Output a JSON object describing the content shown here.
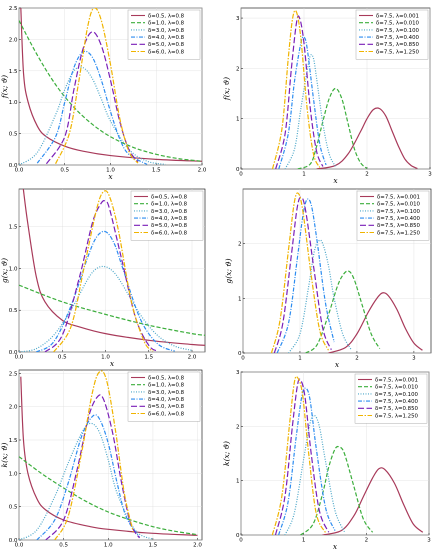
{
  "colors": {
    "s1": "#a83a5a",
    "s2": "#3cae3c",
    "s3": "#4aa6c8",
    "s4": "#2c8cf0",
    "s5": "#7a1fb8",
    "s6": "#f0b400",
    "grid": "#dddddd"
  },
  "chart_data": [
    {
      "type": "line",
      "ylabel": "f(x; ϑ)",
      "xlabel": "x",
      "xlim": [
        0,
        2.0
      ],
      "ylim": [
        0,
        2.5
      ],
      "xticks": [
        "0.0",
        "0.5",
        "1.0",
        "1.5",
        "2.0"
      ],
      "yticks": [
        "0.0",
        "0.5",
        "1.0",
        "1.5",
        "2.0",
        "2.5"
      ],
      "grid": true,
      "legend": "top-right",
      "series": [
        {
          "name": "δ=0.5, λ=0.8",
          "x": [
            0.02,
            0.05,
            0.1,
            0.2,
            0.3,
            0.5,
            0.7,
            1.0,
            1.5,
            2.0
          ],
          "y": [
            2.5,
            1.45,
            1.0,
            0.62,
            0.45,
            0.3,
            0.22,
            0.15,
            0.09,
            0.06
          ]
        },
        {
          "name": "δ=1.0, λ=0.8",
          "x": [
            0.0,
            0.2,
            0.4,
            0.6,
            0.8,
            1.0,
            1.25,
            1.5,
            1.75,
            2.0
          ],
          "y": [
            2.3,
            1.75,
            1.28,
            0.92,
            0.65,
            0.45,
            0.28,
            0.17,
            0.1,
            0.06
          ]
        },
        {
          "name": "δ=3.0, λ=0.8",
          "x": [
            0.0,
            0.2,
            0.4,
            0.5,
            0.6,
            0.7,
            0.8,
            0.9,
            1.0,
            1.2,
            1.4,
            1.6
          ],
          "y": [
            0.0,
            0.2,
            0.8,
            1.2,
            1.5,
            1.55,
            1.38,
            1.05,
            0.7,
            0.25,
            0.06,
            0.01
          ]
        },
        {
          "name": "δ=4.0, λ=0.8",
          "x": [
            0.2,
            0.4,
            0.5,
            0.6,
            0.7,
            0.8,
            0.9,
            1.0,
            1.1,
            1.2,
            1.4
          ],
          "y": [
            0.03,
            0.45,
            1.0,
            1.55,
            1.8,
            1.72,
            1.35,
            0.85,
            0.42,
            0.17,
            0.01
          ]
        },
        {
          "name": "δ=5.0, λ=0.8",
          "x": [
            0.3,
            0.5,
            0.6,
            0.7,
            0.8,
            0.9,
            1.0,
            1.1,
            1.2,
            1.3
          ],
          "y": [
            0.02,
            0.45,
            1.2,
            1.85,
            2.12,
            1.9,
            1.35,
            0.7,
            0.25,
            0.05
          ]
        },
        {
          "name": "δ=6.0, λ=0.8",
          "x": [
            0.4,
            0.55,
            0.65,
            0.75,
            0.82,
            0.9,
            1.0,
            1.1,
            1.2,
            1.3
          ],
          "y": [
            0.02,
            0.5,
            1.3,
            2.2,
            2.5,
            2.3,
            1.6,
            0.75,
            0.22,
            0.03
          ]
        }
      ]
    },
    {
      "type": "line",
      "ylabel": "f(x; ϑ)",
      "xlabel": "x",
      "xlim": [
        0,
        3.0
      ],
      "ylim": [
        0,
        3.2
      ],
      "xticks": [
        "0",
        "1",
        "2",
        "3"
      ],
      "yticks": [
        "0",
        "1",
        "2",
        "3"
      ],
      "grid": true,
      "legend": "top-right",
      "series": [
        {
          "name": "δ=7.5, λ=0.001",
          "x": [
            1.2,
            1.5,
            1.7,
            1.9,
            2.0,
            2.1,
            2.2,
            2.3,
            2.4,
            2.5,
            2.6,
            2.7,
            2.8
          ],
          "y": [
            0.0,
            0.07,
            0.3,
            0.75,
            1.0,
            1.18,
            1.2,
            1.05,
            0.75,
            0.45,
            0.2,
            0.07,
            0.01
          ]
        },
        {
          "name": "δ=7.5, λ=0.010",
          "x": [
            0.9,
            1.1,
            1.2,
            1.3,
            1.4,
            1.5,
            1.6,
            1.7,
            1.8,
            1.9,
            2.0
          ],
          "y": [
            0.0,
            0.1,
            0.45,
            0.95,
            1.4,
            1.6,
            1.4,
            0.9,
            0.4,
            0.12,
            0.01
          ]
        },
        {
          "name": "δ=7.5, λ=0.100",
          "x": [
            0.7,
            0.85,
            0.95,
            1.05,
            1.1,
            1.15,
            1.2,
            1.3,
            1.4,
            1.5
          ],
          "y": [
            0.0,
            0.4,
            1.2,
            1.95,
            2.25,
            2.2,
            1.8,
            0.9,
            0.3,
            0.05
          ]
        },
        {
          "name": "δ=7.5, λ=0.400",
          "x": [
            0.6,
            0.75,
            0.85,
            0.95,
            1.0,
            1.05,
            1.15,
            1.25,
            1.35
          ],
          "y": [
            0.0,
            0.7,
            1.75,
            2.5,
            2.62,
            2.4,
            1.4,
            0.5,
            0.08
          ]
        },
        {
          "name": "δ=7.5, λ=0.850",
          "x": [
            0.55,
            0.7,
            0.8,
            0.88,
            0.93,
            1.0,
            1.1,
            1.2,
            1.3
          ],
          "y": [
            0.0,
            0.7,
            2.0,
            2.9,
            3.0,
            2.5,
            1.2,
            0.35,
            0.05
          ]
        },
        {
          "name": "δ=7.5, λ=1.250",
          "x": [
            0.5,
            0.65,
            0.75,
            0.82,
            0.88,
            0.95,
            1.05,
            1.15,
            1.25
          ],
          "y": [
            0.0,
            0.8,
            2.2,
            3.0,
            3.12,
            2.6,
            1.2,
            0.3,
            0.03
          ]
        }
      ]
    },
    {
      "type": "line",
      "ylabel": "g(x; ϑ)",
      "xlabel": "x",
      "xlim": [
        0,
        2.15
      ],
      "ylim": [
        0,
        1.95
      ],
      "xticks": [
        "0.0",
        "0.5",
        "1.0",
        "1.5",
        "2.0"
      ],
      "yticks": [
        "0.0",
        "0.5",
        "1.0",
        "1.5"
      ],
      "grid": true,
      "legend": "top-right",
      "series": [
        {
          "name": "δ=0.5, λ=0.8",
          "x": [
            0.05,
            0.1,
            0.2,
            0.3,
            0.5,
            0.7,
            1.0,
            1.5,
            2.0,
            2.15
          ],
          "y": [
            1.95,
            1.55,
            0.9,
            0.6,
            0.38,
            0.3,
            0.22,
            0.14,
            0.09,
            0.08
          ]
        },
        {
          "name": "δ=1.0, λ=0.8",
          "x": [
            0.0,
            0.5,
            1.0,
            1.5,
            2.0,
            2.15
          ],
          "y": [
            0.8,
            0.6,
            0.45,
            0.32,
            0.22,
            0.2
          ]
        },
        {
          "name": "δ=3.0, λ=0.8",
          "x": [
            0.0,
            0.2,
            0.4,
            0.6,
            0.8,
            0.9,
            1.0,
            1.1,
            1.2,
            1.4,
            1.6,
            1.8,
            2.0
          ],
          "y": [
            0.0,
            0.04,
            0.2,
            0.5,
            0.88,
            1.0,
            1.02,
            0.95,
            0.8,
            0.45,
            0.2,
            0.07,
            0.02
          ]
        },
        {
          "name": "δ=4.0, λ=0.8",
          "x": [
            0.2,
            0.4,
            0.6,
            0.8,
            0.9,
            1.0,
            1.1,
            1.2,
            1.4,
            1.6,
            1.8
          ],
          "y": [
            0.0,
            0.12,
            0.55,
            1.15,
            1.38,
            1.44,
            1.3,
            1.0,
            0.4,
            0.1,
            0.01
          ]
        },
        {
          "name": "δ=5.0, λ=0.8",
          "x": [
            0.3,
            0.5,
            0.7,
            0.85,
            0.95,
            1.0,
            1.05,
            1.2,
            1.35,
            1.5,
            1.6
          ],
          "y": [
            0.0,
            0.2,
            0.9,
            1.55,
            1.78,
            1.8,
            1.7,
            1.05,
            0.4,
            0.08,
            0.01
          ]
        },
        {
          "name": "δ=6.0, λ=0.8",
          "x": [
            0.4,
            0.6,
            0.75,
            0.9,
            0.98,
            1.05,
            1.15,
            1.3,
            1.45,
            1.55
          ],
          "y": [
            0.0,
            0.3,
            1.0,
            1.72,
            1.92,
            1.85,
            1.45,
            0.6,
            0.12,
            0.01
          ]
        }
      ]
    },
    {
      "type": "line",
      "ylabel": "g(x; ϑ)",
      "xlabel": "x",
      "xlim": [
        0,
        3.3
      ],
      "ylim": [
        0,
        3.0
      ],
      "xticks": [
        "0",
        "1",
        "2",
        "3"
      ],
      "yticks": [
        "0",
        "1",
        "2"
      ],
      "grid": true,
      "legend": "top-right",
      "series": [
        {
          "name": "δ=7.5, λ=0.001",
          "x": [
            1.5,
            1.8,
            2.0,
            2.2,
            2.35,
            2.45,
            2.55,
            2.7,
            2.85,
            3.0,
            3.15
          ],
          "y": [
            0.0,
            0.1,
            0.35,
            0.75,
            1.0,
            1.1,
            1.05,
            0.8,
            0.45,
            0.18,
            0.05
          ]
        },
        {
          "name": "δ=7.5, λ=0.010",
          "x": [
            1.1,
            1.3,
            1.5,
            1.65,
            1.75,
            1.85,
            1.95,
            2.1,
            2.25,
            2.4
          ],
          "y": [
            0.0,
            0.15,
            0.7,
            1.2,
            1.42,
            1.5,
            1.35,
            0.85,
            0.35,
            0.08
          ]
        },
        {
          "name": "δ=7.5, λ=0.100",
          "x": [
            0.8,
            1.0,
            1.15,
            1.25,
            1.33,
            1.4,
            1.5,
            1.6,
            1.75,
            1.9
          ],
          "y": [
            0.0,
            0.35,
            1.2,
            1.85,
            2.05,
            2.0,
            1.6,
            1.0,
            0.35,
            0.06
          ]
        },
        {
          "name": "δ=7.5, λ=0.400",
          "x": [
            0.6,
            0.8,
            0.95,
            1.05,
            1.12,
            1.2,
            1.3,
            1.45,
            1.6
          ],
          "y": [
            0.0,
            0.55,
            1.7,
            2.5,
            2.8,
            2.7,
            2.05,
            0.9,
            0.2
          ]
        },
        {
          "name": "δ=7.5, λ=0.850",
          "x": [
            0.55,
            0.7,
            0.85,
            0.95,
            1.02,
            1.1,
            1.25,
            1.4,
            1.55
          ],
          "y": [
            0.0,
            0.55,
            1.8,
            2.65,
            2.85,
            2.6,
            1.5,
            0.45,
            0.06
          ]
        },
        {
          "name": "δ=7.5, λ=1.250",
          "x": [
            0.5,
            0.65,
            0.8,
            0.9,
            0.97,
            1.05,
            1.2,
            1.35,
            1.5
          ],
          "y": [
            0.0,
            0.6,
            1.9,
            2.75,
            2.92,
            2.6,
            1.4,
            0.4,
            0.05
          ]
        }
      ]
    },
    {
      "type": "line",
      "ylabel": "k(x; ϑ)",
      "xlabel": "x",
      "xlim": [
        0,
        2.05
      ],
      "ylim": [
        0,
        2.55
      ],
      "xticks": [
        "0.0",
        "0.5",
        "1.0",
        "1.5",
        "2.0"
      ],
      "yticks": [
        "0.0",
        "0.5",
        "1.0",
        "1.5",
        "2.0",
        "2.5"
      ],
      "grid": true,
      "legend": "top-right",
      "series": [
        {
          "name": "δ=0.5, λ=0.8",
          "x": [
            0.02,
            0.05,
            0.1,
            0.2,
            0.3,
            0.5,
            0.8,
            1.0,
            1.5,
            2.0
          ],
          "y": [
            2.45,
            1.5,
            1.0,
            0.62,
            0.45,
            0.3,
            0.2,
            0.16,
            0.1,
            0.07
          ]
        },
        {
          "name": "δ=1.0, λ=0.8",
          "x": [
            0.0,
            0.25,
            0.5,
            0.75,
            1.0,
            1.25,
            1.5,
            1.75,
            2.0
          ],
          "y": [
            1.25,
            1.0,
            0.78,
            0.58,
            0.42,
            0.3,
            0.2,
            0.13,
            0.08
          ]
        },
        {
          "name": "δ=3.0, λ=0.8",
          "x": [
            0.0,
            0.2,
            0.4,
            0.55,
            0.7,
            0.8,
            0.9,
            1.0,
            1.1,
            1.3,
            1.5
          ],
          "y": [
            0.0,
            0.15,
            0.65,
            1.15,
            1.6,
            1.75,
            1.62,
            1.2,
            0.7,
            0.15,
            0.01
          ]
        },
        {
          "name": "δ=4.0, λ=0.8",
          "x": [
            0.2,
            0.4,
            0.55,
            0.7,
            0.82,
            0.9,
            1.0,
            1.1,
            1.2,
            1.35
          ],
          "y": [
            0.0,
            0.3,
            0.85,
            1.55,
            1.85,
            1.82,
            1.45,
            0.85,
            0.35,
            0.04
          ]
        },
        {
          "name": "δ=5.0, λ=0.8",
          "x": [
            0.3,
            0.5,
            0.65,
            0.78,
            0.88,
            0.95,
            1.05,
            1.15,
            1.25,
            1.35
          ],
          "y": [
            0.0,
            0.3,
            1.05,
            1.85,
            2.15,
            2.1,
            1.6,
            0.85,
            0.25,
            0.03
          ]
        },
        {
          "name": "δ=6.0, λ=0.8",
          "x": [
            0.4,
            0.55,
            0.7,
            0.82,
            0.9,
            0.98,
            1.08,
            1.18,
            1.28
          ],
          "y": [
            0.0,
            0.35,
            1.3,
            2.2,
            2.52,
            2.4,
            1.65,
            0.7,
            0.12
          ]
        }
      ]
    },
    {
      "type": "line",
      "ylabel": "k(x; ϑ)",
      "xlabel": "x",
      "xlim": [
        0,
        3.0
      ],
      "ylim": [
        0,
        3.0
      ],
      "xticks": [
        "0",
        "1",
        "2",
        "3"
      ],
      "yticks": [
        "0",
        "1",
        "2",
        "3"
      ],
      "grid": true,
      "legend": "top-right",
      "series": [
        {
          "name": "δ=7.5, λ=0.001",
          "x": [
            1.3,
            1.6,
            1.8,
            1.95,
            2.1,
            2.2,
            2.3,
            2.45,
            2.6,
            2.75,
            2.9
          ],
          "y": [
            0.0,
            0.08,
            0.35,
            0.7,
            1.05,
            1.22,
            1.2,
            0.95,
            0.55,
            0.2,
            0.05
          ]
        },
        {
          "name": "δ=7.5, λ=0.010",
          "x": [
            0.95,
            1.15,
            1.3,
            1.4,
            1.5,
            1.57,
            1.65,
            1.8,
            1.95,
            2.1
          ],
          "y": [
            0.0,
            0.2,
            0.75,
            1.25,
            1.58,
            1.62,
            1.5,
            0.9,
            0.3,
            0.05
          ]
        },
        {
          "name": "δ=7.5, λ=0.100",
          "x": [
            0.7,
            0.85,
            1.0,
            1.1,
            1.17,
            1.25,
            1.35,
            1.5,
            1.65
          ],
          "y": [
            0.0,
            0.4,
            1.4,
            2.05,
            2.2,
            2.0,
            1.35,
            0.45,
            0.06
          ]
        },
        {
          "name": "δ=7.5, λ=0.400",
          "x": [
            0.6,
            0.75,
            0.88,
            0.97,
            1.03,
            1.1,
            1.2,
            1.35,
            1.5
          ],
          "y": [
            0.0,
            0.6,
            1.8,
            2.55,
            2.7,
            2.5,
            1.6,
            0.5,
            0.08
          ]
        },
        {
          "name": "δ=7.5, λ=0.850",
          "x": [
            0.55,
            0.7,
            0.82,
            0.9,
            0.95,
            1.02,
            1.12,
            1.25,
            1.4
          ],
          "y": [
            0.0,
            0.7,
            2.0,
            2.75,
            2.85,
            2.55,
            1.5,
            0.45,
            0.05
          ]
        },
        {
          "name": "δ=7.5, λ=1.250",
          "x": [
            0.5,
            0.65,
            0.78,
            0.85,
            0.9,
            0.98,
            1.08,
            1.2,
            1.35
          ],
          "y": [
            0.0,
            0.7,
            2.1,
            2.8,
            2.9,
            2.6,
            1.5,
            0.4,
            0.04
          ]
        }
      ]
    }
  ]
}
